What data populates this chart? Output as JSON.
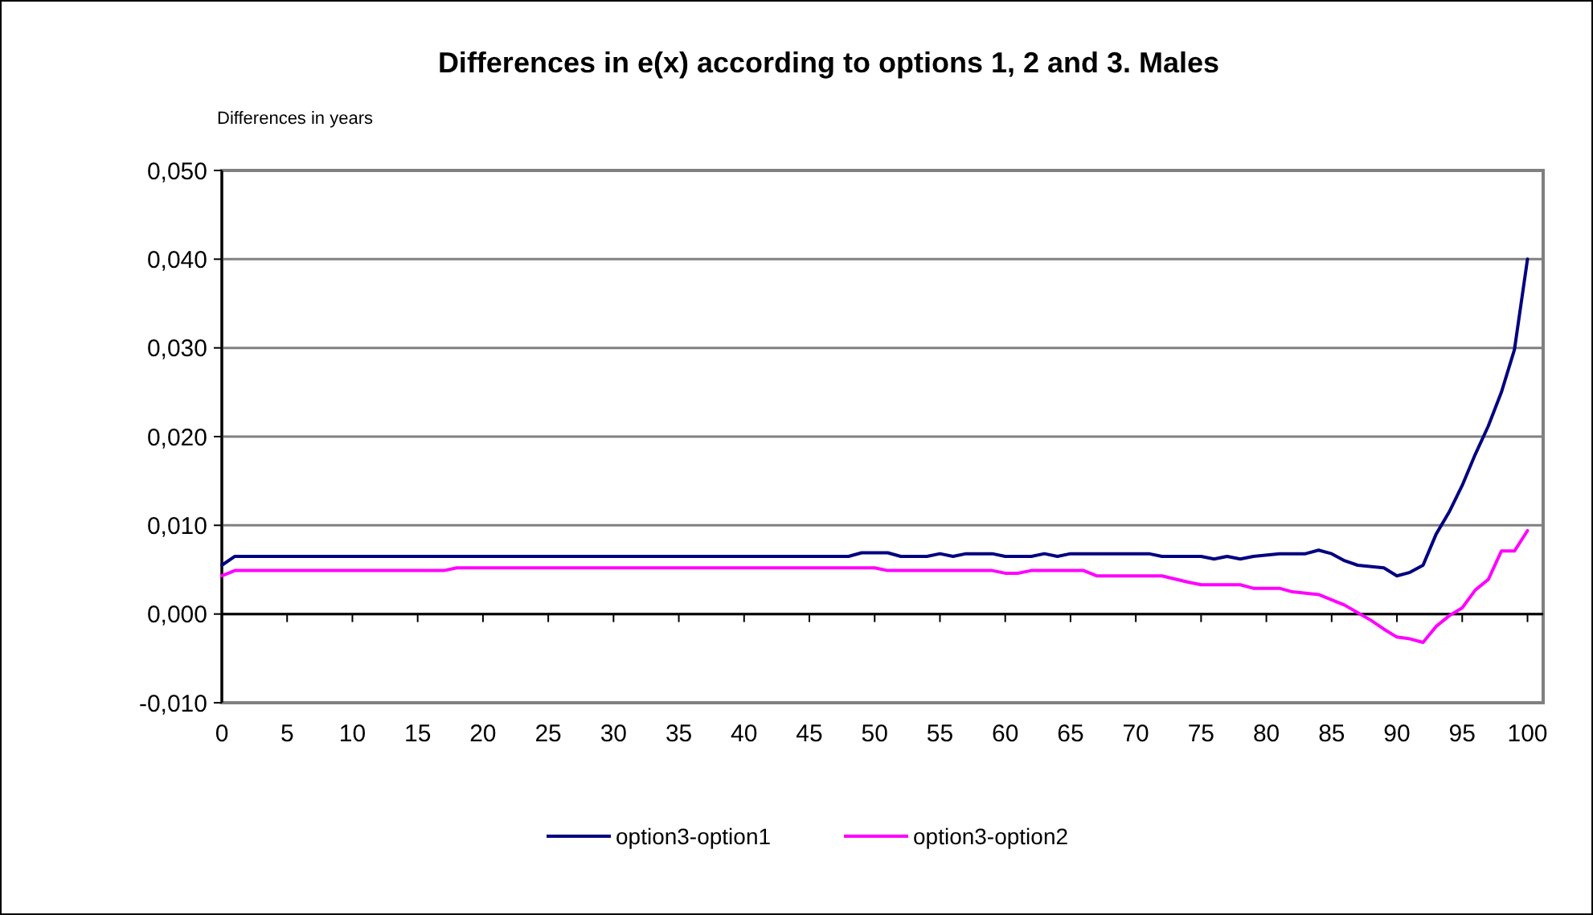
{
  "chart_data": {
    "type": "line",
    "title": "Differences in e(x) according to options 1, 2 and 3. Males",
    "ylabel": "Differences in years",
    "xlim": [
      0,
      101.2
    ],
    "xticks": [
      0,
      5,
      10,
      15,
      20,
      25,
      30,
      35,
      40,
      45,
      50,
      55,
      60,
      65,
      70,
      75,
      80,
      85,
      90,
      95,
      100
    ],
    "ylim": [
      -0.01,
      0.05
    ],
    "yticks": [
      {
        "value": -0.01,
        "label": "-0,010"
      },
      {
        "value": 0,
        "label": "0,000"
      },
      {
        "value": 0.01,
        "label": "0,010"
      },
      {
        "value": 0.02,
        "label": "0,020"
      },
      {
        "value": 0.03,
        "label": "0,030"
      },
      {
        "value": 0.04,
        "label": "0,040"
      },
      {
        "value": 0.05,
        "label": "0,050"
      }
    ],
    "grid": "y",
    "legend": "bottom",
    "marker": "none",
    "line_style": "solid",
    "series": [
      {
        "name": "option3-option1",
        "color": "#000080",
        "x": [
          0,
          1,
          48,
          49,
          51,
          52,
          54,
          55,
          56,
          57,
          59,
          60,
          62,
          63,
          64,
          65,
          71,
          72,
          75,
          76,
          77,
          78,
          79,
          81,
          83,
          84,
          85,
          86,
          87,
          89,
          90,
          91,
          92,
          93,
          94,
          95,
          96,
          97,
          98,
          99,
          100
        ],
        "values": [
          0.0055,
          0.0065,
          0.0065,
          0.0069,
          0.0069,
          0.0065,
          0.0065,
          0.0068,
          0.0065,
          0.0068,
          0.0068,
          0.0065,
          0.0065,
          0.0068,
          0.0065,
          0.0068,
          0.0068,
          0.0065,
          0.0065,
          0.0062,
          0.0065,
          0.0062,
          0.0065,
          0.0068,
          0.0068,
          0.0072,
          0.0068,
          0.006,
          0.0055,
          0.0052,
          0.0043,
          0.0047,
          0.0055,
          0.009,
          0.0115,
          0.0145,
          0.018,
          0.0212,
          0.025,
          0.0298,
          0.04
        ]
      },
      {
        "name": "option3-option2",
        "color": "#ff00ff",
        "x": [
          0,
          1,
          17,
          18,
          50,
          51,
          59,
          60,
          61,
          62,
          66,
          67,
          72,
          74,
          75,
          78,
          79,
          81,
          82,
          84,
          86,
          88,
          89,
          90,
          91,
          92,
          93,
          94,
          95,
          96,
          97,
          98,
          99,
          100
        ],
        "values": [
          0.0043,
          0.0049,
          0.0049,
          0.0052,
          0.0052,
          0.0049,
          0.0049,
          0.0046,
          0.0046,
          0.0049,
          0.0049,
          0.0043,
          0.0043,
          0.0036,
          0.0033,
          0.0033,
          0.0029,
          0.0029,
          0.0025,
          0.0022,
          0.001,
          -0.0007,
          -0.0017,
          -0.0026,
          -0.0028,
          -0.0032,
          -0.0014,
          -0.0002,
          0.0007,
          0.0027,
          0.0039,
          0.0071,
          0.0071,
          0.0094
        ]
      }
    ]
  }
}
